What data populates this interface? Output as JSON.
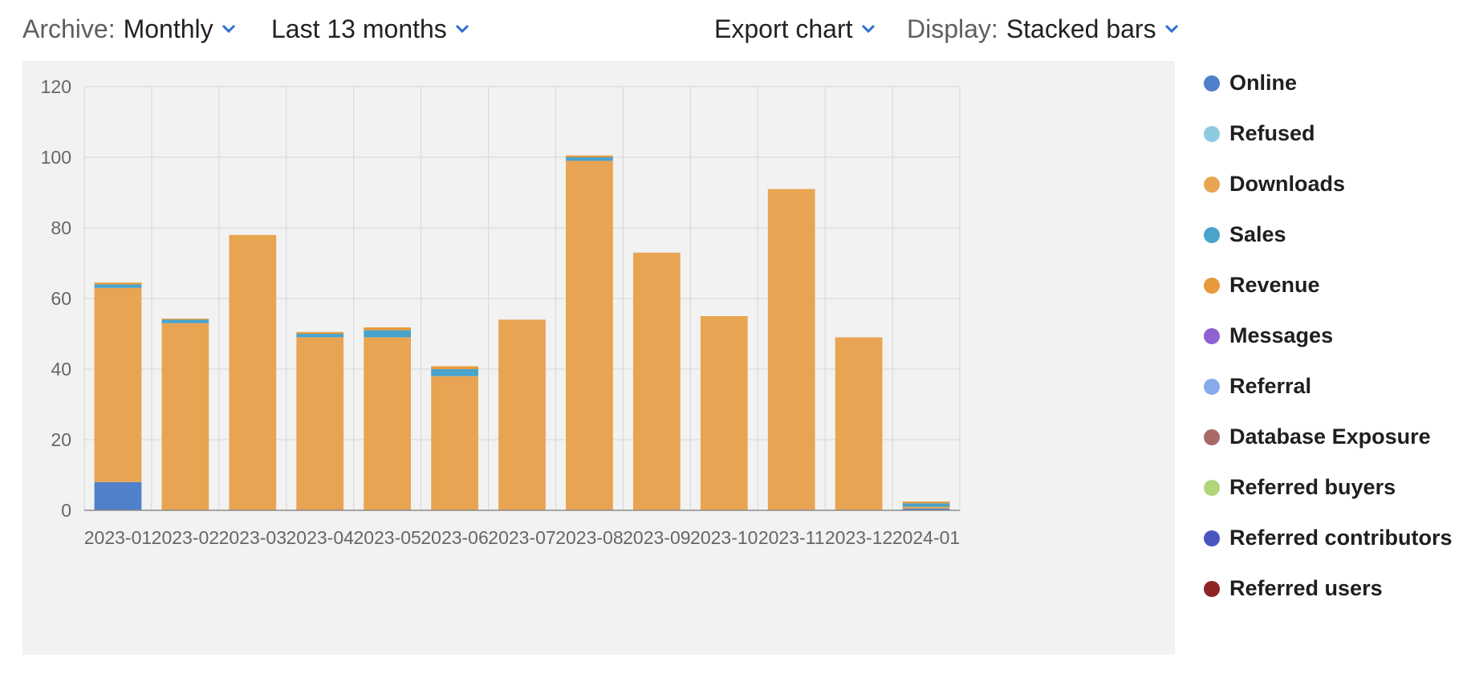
{
  "toolbar": {
    "archive_label": "Archive:",
    "archive_value": "Monthly",
    "range_value": "Last 13 months",
    "export_label": "Export chart",
    "display_label": "Display:",
    "display_value": "Stacked bars"
  },
  "colors": {
    "accent": "#2d6fd2",
    "plot_background": "#f2f2f2",
    "grid": "#d6d6d6"
  },
  "chart_data": {
    "type": "bar",
    "stacked": true,
    "title": "",
    "xlabel": "",
    "ylabel": "",
    "ylim": [
      0,
      120
    ],
    "yticks": [
      0,
      20,
      40,
      60,
      80,
      100,
      120
    ],
    "grid": true,
    "legend_position": "right",
    "categories": [
      "2023-01",
      "2023-02",
      "2023-03",
      "2023-04",
      "2023-05",
      "2023-06",
      "2023-07",
      "2023-08",
      "2023-09",
      "2023-10",
      "2023-11",
      "2023-12",
      "2024-01"
    ],
    "series": [
      {
        "name": "Online",
        "color": "#4f80c9",
        "values": [
          8,
          0,
          0,
          0,
          0,
          0,
          0,
          0,
          0,
          0,
          0,
          0,
          0.5
        ]
      },
      {
        "name": "Refused",
        "color": "#8ecae0",
        "values": [
          0,
          0,
          0,
          0,
          0,
          0,
          0,
          0,
          0,
          0,
          0,
          0,
          0
        ]
      },
      {
        "name": "Downloads",
        "color": "#e8a452",
        "values": [
          55,
          53,
          78,
          49,
          49,
          38,
          54,
          99,
          73,
          55,
          91,
          49,
          0.5
        ]
      },
      {
        "name": "Sales",
        "color": "#4aa3cb",
        "values": [
          1,
          1,
          0,
          1,
          2,
          2,
          0,
          1,
          0,
          0,
          0,
          0,
          1
        ]
      },
      {
        "name": "Revenue",
        "color": "#e89a3c",
        "values": [
          0.5,
          0.3,
          0,
          0.5,
          0.8,
          0.8,
          0,
          0.5,
          0,
          0,
          0,
          0,
          0.5
        ]
      },
      {
        "name": "Messages",
        "color": "#8e63d1",
        "values": [
          0,
          0,
          0,
          0,
          0,
          0,
          0,
          0,
          0,
          0,
          0,
          0,
          0
        ]
      },
      {
        "name": "Referral",
        "color": "#86aaeb",
        "values": [
          0,
          0,
          0,
          0,
          0,
          0,
          0,
          0,
          0,
          0,
          0,
          0,
          0
        ]
      },
      {
        "name": "Database Exposure",
        "color": "#a86a67",
        "values": [
          0,
          0,
          0,
          0,
          0,
          0,
          0,
          0,
          0,
          0,
          0,
          0,
          0
        ]
      },
      {
        "name": "Referred buyers",
        "color": "#b2d57a",
        "values": [
          0,
          0,
          0,
          0,
          0,
          0,
          0,
          0,
          0,
          0,
          0,
          0,
          0
        ]
      },
      {
        "name": "Referred contributors",
        "color": "#4a55c2",
        "values": [
          0,
          0,
          0,
          0,
          0,
          0,
          0,
          0,
          0,
          0,
          0,
          0,
          0
        ]
      },
      {
        "name": "Referred users",
        "color": "#8f2424",
        "values": [
          0,
          0,
          0,
          0,
          0,
          0,
          0,
          0,
          0,
          0,
          0,
          0,
          0
        ]
      }
    ]
  }
}
